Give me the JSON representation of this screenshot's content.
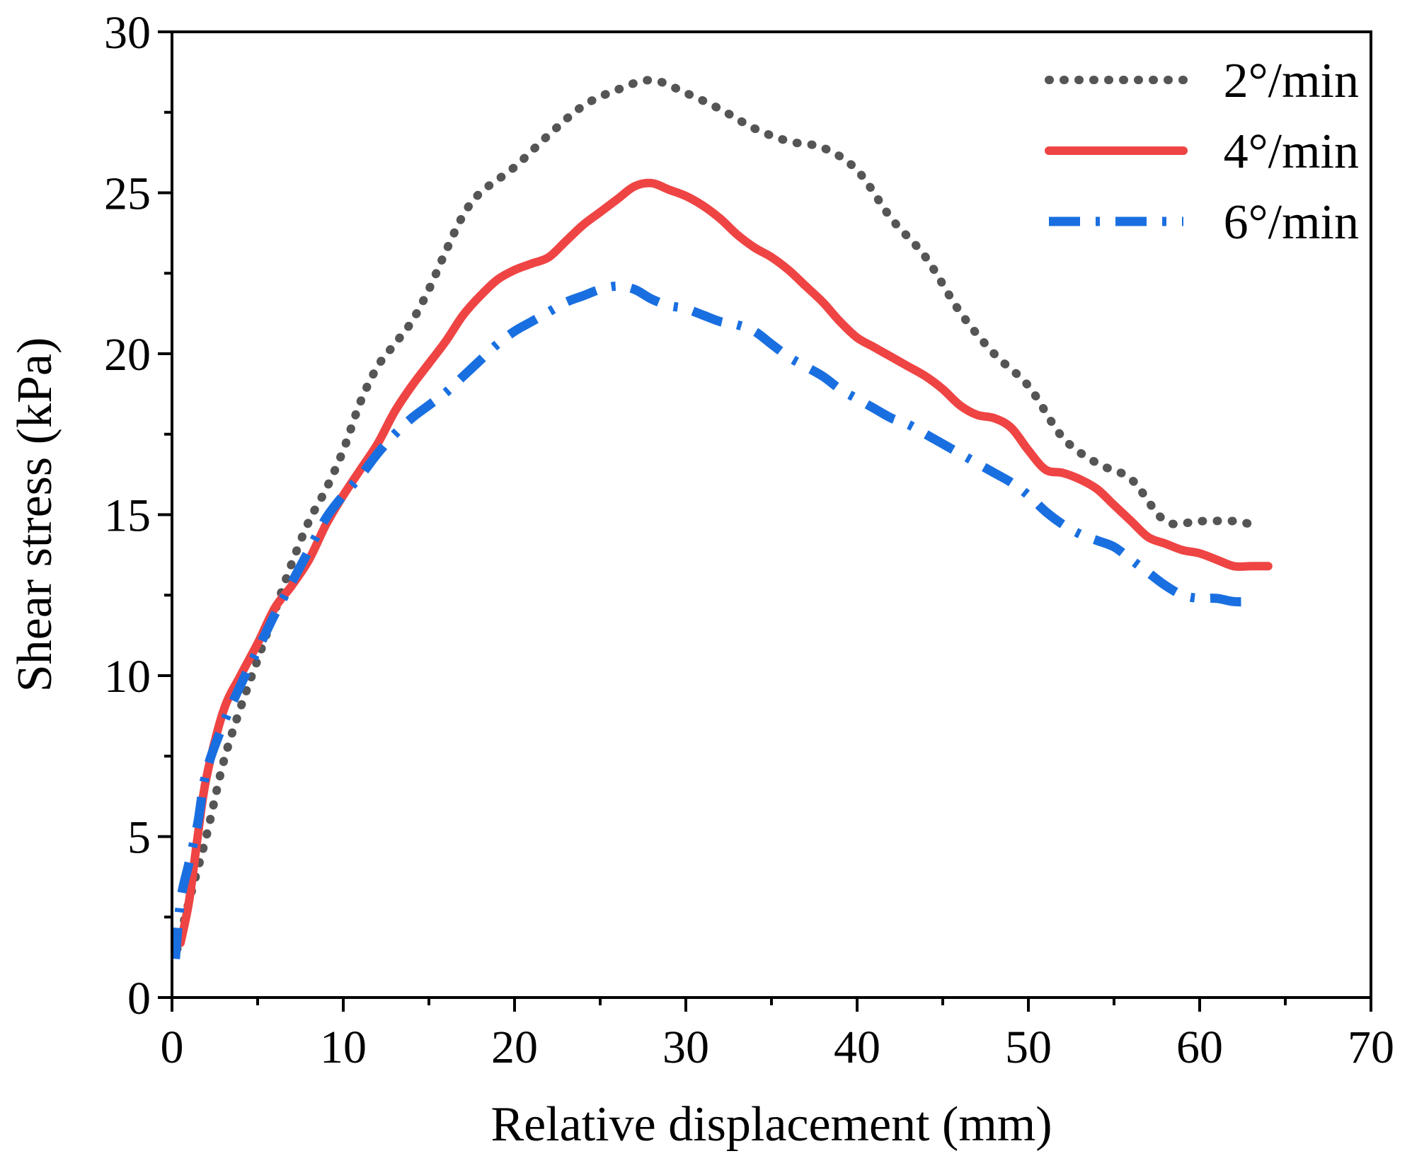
{
  "chart_data": {
    "type": "line",
    "title": "",
    "xlabel": "Relative displacement (mm)",
    "ylabel": "Shear stress (kPa)",
    "xlim": [
      0,
      70
    ],
    "ylim": [
      0,
      30
    ],
    "xticks": [
      0,
      10,
      20,
      30,
      40,
      50,
      60,
      70
    ],
    "yticks": [
      0,
      5,
      10,
      15,
      20,
      25,
      30
    ],
    "xtick_labels": [
      "0",
      "10",
      "20",
      "30",
      "40",
      "50",
      "60",
      "70"
    ],
    "ytick_labels": [
      "0",
      "5",
      "10",
      "15",
      "20",
      "25",
      "30"
    ],
    "grid": false,
    "legend_position": "top-right",
    "series": [
      {
        "name": "2°/min",
        "color": "#555555",
        "style": "dotted",
        "x": [
          0.3,
          1,
          2,
          3,
          4,
          5,
          6,
          7,
          8,
          9,
          10,
          11,
          12,
          13,
          14,
          15,
          16,
          17,
          18,
          20,
          22,
          24,
          26,
          28,
          30,
          32,
          34,
          36,
          38,
          40,
          42,
          44,
          46,
          48,
          50,
          52,
          54,
          56,
          58,
          60,
          62,
          63
        ],
        "y": [
          1.5,
          3.0,
          5.0,
          7.3,
          9.0,
          10.5,
          12.0,
          13.5,
          14.8,
          15.8,
          17.0,
          18.5,
          19.6,
          20.3,
          21.0,
          22.0,
          23.2,
          24.3,
          25.0,
          25.8,
          26.8,
          27.7,
          28.2,
          28.5,
          28.1,
          27.6,
          27.0,
          26.6,
          26.4,
          25.7,
          24.2,
          23.0,
          21.3,
          20.0,
          19.0,
          17.4,
          16.6,
          16.1,
          14.8,
          14.8,
          14.8,
          14.7
        ]
      },
      {
        "name": "4°/min",
        "color": "#ef4444",
        "style": "solid",
        "x": [
          0.5,
          1,
          1.5,
          2,
          3,
          4,
          5,
          6,
          7,
          8,
          9,
          10,
          11,
          12,
          13,
          14,
          15,
          16,
          17,
          18,
          19,
          20,
          21,
          22,
          23,
          24,
          25,
          26,
          27,
          28,
          29,
          30,
          31,
          32,
          33,
          34,
          35,
          36,
          37,
          38,
          39,
          40,
          41,
          42,
          43,
          44,
          45,
          46,
          47,
          48,
          49,
          50,
          51,
          52,
          53,
          54,
          55,
          56,
          57,
          58,
          59,
          60,
          61,
          62,
          63,
          64
        ],
        "y": [
          1.7,
          3.0,
          5.0,
          6.8,
          8.9,
          10.0,
          11.0,
          12.1,
          12.8,
          13.6,
          14.7,
          15.6,
          16.4,
          17.2,
          18.2,
          19.0,
          19.7,
          20.4,
          21.2,
          21.8,
          22.3,
          22.6,
          22.8,
          23.0,
          23.5,
          24.0,
          24.4,
          24.8,
          25.2,
          25.3,
          25.1,
          24.9,
          24.6,
          24.2,
          23.7,
          23.3,
          23.0,
          22.6,
          22.1,
          21.6,
          21.0,
          20.5,
          20.2,
          19.9,
          19.6,
          19.3,
          18.9,
          18.4,
          18.1,
          18.0,
          17.7,
          17.0,
          16.4,
          16.3,
          16.1,
          15.8,
          15.3,
          14.8,
          14.3,
          14.1,
          13.9,
          13.8,
          13.6,
          13.4,
          13.4,
          13.4
        ]
      },
      {
        "name": "6°/min",
        "color": "#1a6fe0",
        "style": "dash-dot",
        "x": [
          0.2,
          0.5,
          1,
          1.5,
          2,
          3,
          4,
          5,
          6,
          7,
          8,
          9,
          10,
          11,
          12,
          13,
          14,
          15,
          16,
          17,
          18,
          19,
          20,
          21,
          22,
          23,
          24,
          25,
          26,
          27,
          28,
          29,
          30,
          31,
          32,
          33,
          34,
          35,
          36,
          37,
          38,
          39,
          40,
          41,
          42,
          43,
          44,
          45,
          46,
          47,
          48,
          49,
          50,
          51,
          52,
          53,
          54,
          55,
          56,
          57,
          58,
          59,
          60,
          61,
          62,
          63
        ],
        "y": [
          1.2,
          3.0,
          4.2,
          5.4,
          7.0,
          8.5,
          9.7,
          10.8,
          11.9,
          12.9,
          13.9,
          14.9,
          15.6,
          16.2,
          16.9,
          17.5,
          18.0,
          18.4,
          18.8,
          19.3,
          19.8,
          20.3,
          20.7,
          21.0,
          21.3,
          21.6,
          21.8,
          22.0,
          22.1,
          22.0,
          21.7,
          21.5,
          21.4,
          21.2,
          21.0,
          20.9,
          20.7,
          20.3,
          19.9,
          19.6,
          19.3,
          18.9,
          18.6,
          18.3,
          18.0,
          17.8,
          17.5,
          17.2,
          16.9,
          16.6,
          16.3,
          16.0,
          15.6,
          15.1,
          14.7,
          14.4,
          14.2,
          14.0,
          13.6,
          13.2,
          12.8,
          12.5,
          12.4,
          12.4,
          12.3,
          12.3
        ]
      }
    ]
  }
}
